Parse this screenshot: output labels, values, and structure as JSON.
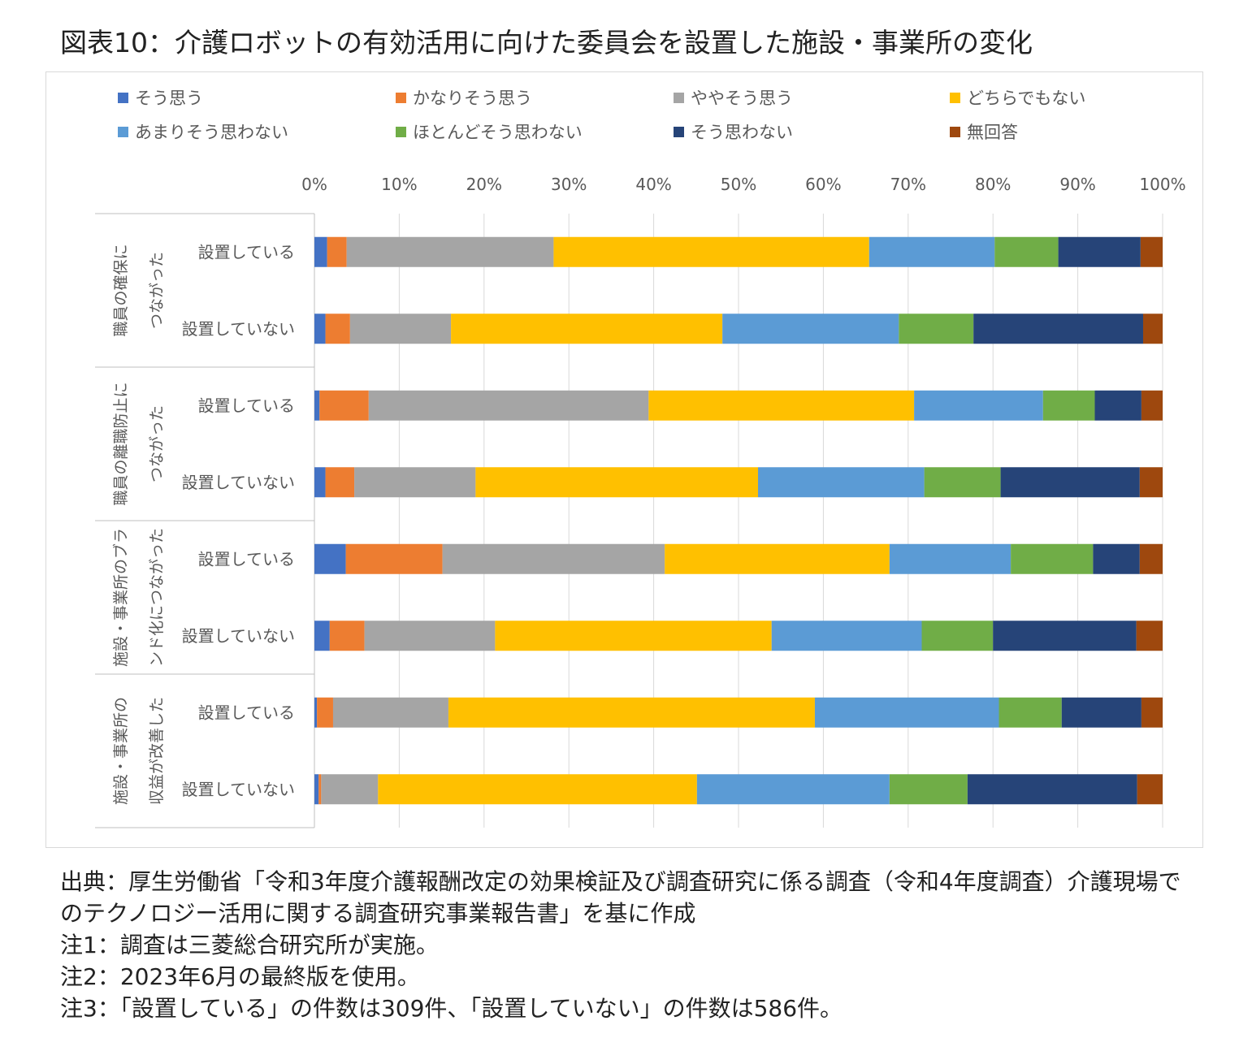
{
  "title": "図表10：介護ロボットの有効活用に向けた委員会を設置した施設・事業所の変化",
  "notes": {
    "source": "出典：厚生労働省「令和3年度介護報酬改定の効果検証及び調査研究に係る調査（令和4年度調査）介護現場でのテクノロジー活用に関する調査研究事業報告書」を基に作成",
    "note1": "注1：調査は三菱総合研究所が実施。",
    "note2": "注2：2023年6月の最終版を使用。",
    "note3": "注3：「設置している」の件数は309件、「設置していない」の件数は586件。"
  },
  "chart_data": {
    "type": "bar",
    "orientation": "horizontal",
    "stacked": "percent",
    "xlim": [
      0,
      100
    ],
    "x_ticks": [
      "0%",
      "10%",
      "20%",
      "30%",
      "40%",
      "50%",
      "60%",
      "70%",
      "80%",
      "90%",
      "100%"
    ],
    "grid": true,
    "legend_position": "top",
    "groups": [
      {
        "label": [
          "職員の確保に",
          "つながった"
        ],
        "categories": [
          "設置している",
          "設置していない"
        ]
      },
      {
        "label": [
          "職員の離職防止に",
          "つながった"
        ],
        "categories": [
          "設置している",
          "設置していない"
        ]
      },
      {
        "label": [
          "施設・事業所のブラ",
          "ンド化につながった"
        ],
        "categories": [
          "設置している",
          "設置していない"
        ]
      },
      {
        "label": [
          "施設・事業所の",
          "収益が改善した"
        ],
        "categories": [
          "設置している",
          "設置していない"
        ]
      }
    ],
    "series": [
      {
        "name": "そう思う",
        "color": "#4472C4",
        "values": [
          1.5,
          1.3,
          0.6,
          1.3,
          3.7,
          1.8,
          0.3,
          0.5
        ]
      },
      {
        "name": "かなりそう思う",
        "color": "#ED7D31",
        "values": [
          2.3,
          2.9,
          5.8,
          3.4,
          11.4,
          4.1,
          1.9,
          0.3
        ]
      },
      {
        "name": "ややそう思う",
        "color": "#A5A5A5",
        "values": [
          24.4,
          11.9,
          33.0,
          14.3,
          26.2,
          15.4,
          13.6,
          6.7
        ]
      },
      {
        "name": "どちらでもない",
        "color": "#FFC000",
        "values": [
          37.2,
          32.0,
          31.3,
          33.3,
          26.5,
          32.6,
          43.2,
          37.6
        ]
      },
      {
        "name": "あまりそう思わない",
        "color": "#5B9BD5",
        "values": [
          14.8,
          20.8,
          15.2,
          19.6,
          14.3,
          17.7,
          21.7,
          22.7
        ]
      },
      {
        "name": "ほとんどそう思わない",
        "color": "#70AD47",
        "values": [
          7.5,
          8.8,
          6.1,
          9.0,
          9.7,
          8.4,
          7.4,
          9.2
        ]
      },
      {
        "name": "そう思わない",
        "color": "#264478",
        "values": [
          9.7,
          20.0,
          5.5,
          16.4,
          5.5,
          16.9,
          9.4,
          20.0
        ]
      },
      {
        "name": "無回答",
        "color": "#9E480E",
        "values": [
          2.6,
          2.3,
          2.5,
          2.7,
          2.7,
          3.1,
          2.5,
          3.0
        ]
      }
    ]
  }
}
